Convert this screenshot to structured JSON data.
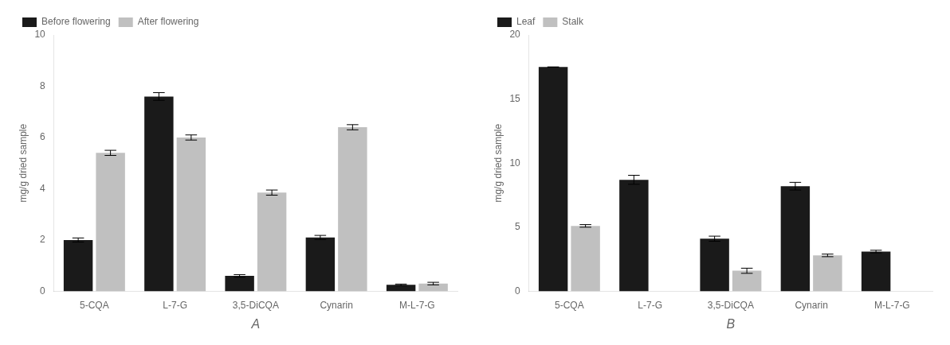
{
  "chart_data": [
    {
      "type": "bar",
      "categories": [
        "5-CQA",
        "L-7-G",
        "3,5-DiCQA",
        "Cynarin",
        "M-L-7-G"
      ],
      "series": [
        {
          "name": "Before flowering",
          "color": "#1a1a1a",
          "values": [
            2.0,
            7.6,
            0.6,
            2.1,
            0.25
          ],
          "errors": [
            0.08,
            0.15,
            0.05,
            0.08,
            0.03
          ]
        },
        {
          "name": "After flowering",
          "color": "#c0c0c0",
          "values": [
            5.4,
            6.0,
            3.85,
            6.4,
            0.3
          ],
          "errors": [
            0.1,
            0.1,
            0.1,
            0.1,
            0.05
          ]
        }
      ],
      "ylabel": "mg/g dried sample",
      "xlabel": "A",
      "ylim": [
        0,
        10
      ],
      "yticks": [
        0,
        2,
        4,
        6,
        8,
        10
      ],
      "grid": false,
      "legend": "upper left"
    },
    {
      "type": "bar",
      "categories": [
        "5-CQA",
        "L-7-G",
        "3,5-DiCQA",
        "Cynarin",
        "M-L-7-G"
      ],
      "series": [
        {
          "name": "Leaf",
          "color": "#1a1a1a",
          "values": [
            17.5,
            8.7,
            4.1,
            8.2,
            3.1
          ],
          "errors": [
            0.0,
            0.35,
            0.2,
            0.3,
            0.1
          ]
        },
        {
          "name": "Stalk",
          "color": "#c0c0c0",
          "values": [
            5.1,
            0.0,
            1.6,
            2.8,
            0.0
          ],
          "errors": [
            0.1,
            0.0,
            0.2,
            0.1,
            0.0
          ]
        }
      ],
      "ylabel": "mg/g dried sample",
      "xlabel": "B",
      "ylim": [
        0,
        20
      ],
      "yticks": [
        0,
        5,
        10,
        15,
        20
      ],
      "grid": false,
      "legend": "upper left"
    }
  ]
}
